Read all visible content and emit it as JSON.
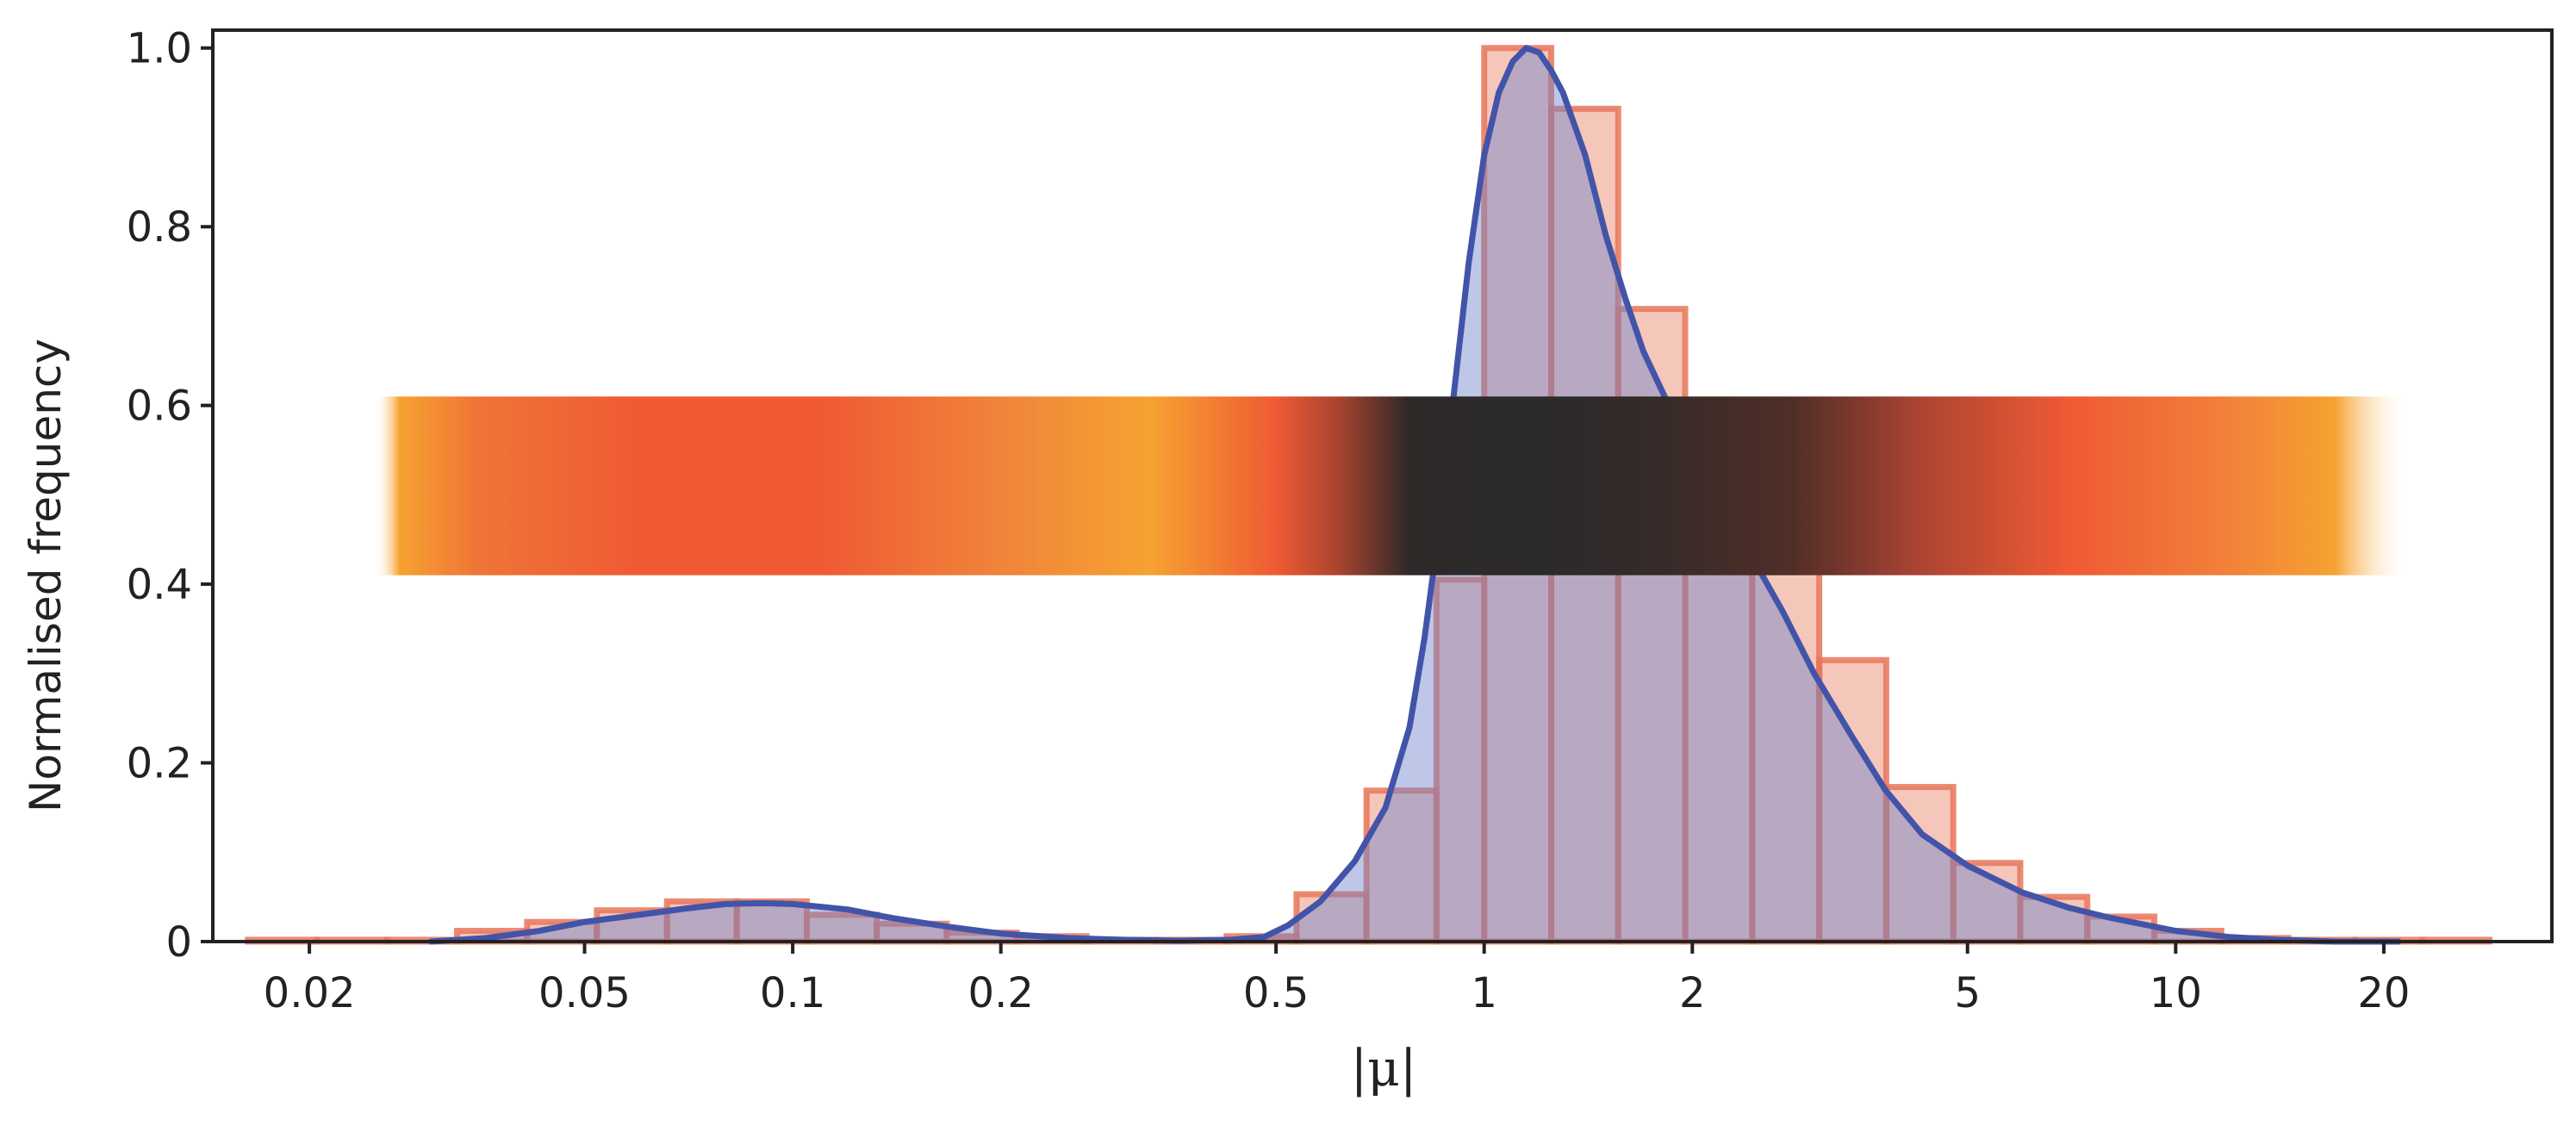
{
  "chart_data": {
    "type": "bar",
    "title": "",
    "xlabel": "|μ|",
    "ylabel": "Normalised frequency",
    "x_scale": "log",
    "xlim": [
      0.0145,
      35.0
    ],
    "ylim": [
      0,
      1.02
    ],
    "grid": false,
    "x_ticks": [
      {
        "value": 0.02,
        "label": "0.02"
      },
      {
        "value": 0.05,
        "label": "0.05"
      },
      {
        "value": 0.1,
        "label": "0.1"
      },
      {
        "value": 0.2,
        "label": "0.2"
      },
      {
        "value": 0.5,
        "label": "0.5"
      },
      {
        "value": 1,
        "label": "1"
      },
      {
        "value": 2,
        "label": "2"
      },
      {
        "value": 5,
        "label": "5"
      },
      {
        "value": 10,
        "label": "10"
      },
      {
        "value": 20,
        "label": "20"
      }
    ],
    "y_ticks": [
      {
        "value": 0,
        "label": "0"
      },
      {
        "value": 0.2,
        "label": "0.2"
      },
      {
        "value": 0.4,
        "label": "0.4"
      },
      {
        "value": 0.6,
        "label": "0.6"
      },
      {
        "value": 0.8,
        "label": "0.8"
      },
      {
        "value": 1.0,
        "label": "1.0"
      }
    ],
    "histogram": {
      "color": "#e8765a",
      "bin_edges": [
        0.0163,
        0.0205,
        0.0259,
        0.0327,
        0.0413,
        0.0521,
        0.0658,
        0.083,
        0.1048,
        0.1323,
        0.167,
        0.2108,
        0.2661,
        0.3359,
        0.4241,
        0.5353,
        0.6758,
        0.8531,
        1.0,
        1.25,
        1.5625,
        1.9531,
        2.4414,
        3.0518,
        3.8147,
        4.7684,
        5.9605,
        7.4506,
        9.3132,
        11.6415,
        14.5519,
        18.1899,
        22.7374,
        28.4217
      ],
      "values": [
        0.002,
        0.002,
        0.002,
        0.012,
        0.022,
        0.035,
        0.045,
        0.045,
        0.03,
        0.02,
        0.01,
        0.006,
        0.002,
        0.002,
        0.006,
        0.053,
        0.169,
        0.405,
        1.0,
        0.932,
        0.708,
        0.532,
        0.456,
        0.315,
        0.173,
        0.088,
        0.05,
        0.028,
        0.012,
        0.004,
        0.002,
        0.002,
        0.002
      ]
    },
    "density_curve": {
      "color": "#4254a8",
      "x": [
        0.03,
        0.036,
        0.043,
        0.05,
        0.06,
        0.07,
        0.08,
        0.09,
        0.1,
        0.12,
        0.14,
        0.17,
        0.2,
        0.25,
        0.3,
        0.36,
        0.43,
        0.48,
        0.52,
        0.58,
        0.65,
        0.72,
        0.78,
        0.82,
        0.86,
        0.9,
        0.95,
        1.0,
        1.05,
        1.1,
        1.15,
        1.2,
        1.25,
        1.3,
        1.4,
        1.5,
        1.6,
        1.7,
        1.85,
        2.0,
        2.2,
        2.4,
        2.7,
        3.0,
        3.4,
        3.8,
        4.3,
        5.0,
        6.0,
        7.0,
        8.0,
        10.0,
        12.0,
        14.0,
        17.0,
        21.0
      ],
      "y": [
        0.0,
        0.004,
        0.012,
        0.022,
        0.03,
        0.037,
        0.042,
        0.043,
        0.042,
        0.036,
        0.026,
        0.016,
        0.009,
        0.004,
        0.002,
        0.001,
        0.002,
        0.005,
        0.018,
        0.045,
        0.09,
        0.15,
        0.24,
        0.34,
        0.46,
        0.6,
        0.76,
        0.88,
        0.95,
        0.985,
        1.0,
        0.995,
        0.975,
        0.95,
        0.88,
        0.79,
        0.72,
        0.66,
        0.6,
        0.55,
        0.49,
        0.44,
        0.37,
        0.3,
        0.23,
        0.17,
        0.12,
        0.085,
        0.055,
        0.038,
        0.027,
        0.012,
        0.005,
        0.002,
        0.0,
        0.0
      ]
    },
    "color_band": {
      "ylim": [
        0.41,
        0.61
      ],
      "xlim": [
        0.025,
        21.5
      ],
      "stops": [
        {
          "x": 0.025,
          "color": "#fff2dc",
          "opacity": 0.0
        },
        {
          "x": 0.027,
          "color": "#f6a231",
          "opacity": 1.0
        },
        {
          "x": 0.035,
          "color": "#f07437",
          "opacity": 1.0
        },
        {
          "x": 0.06,
          "color": "#ef5a33",
          "opacity": 1.0
        },
        {
          "x": 0.11,
          "color": "#ef5a33",
          "opacity": 1.0
        },
        {
          "x": 0.2,
          "color": "#f0843a",
          "opacity": 1.0
        },
        {
          "x": 0.33,
          "color": "#f6a231",
          "opacity": 1.0
        },
        {
          "x": 0.5,
          "color": "#ef5a33",
          "opacity": 1.0
        },
        {
          "x": 0.62,
          "color": "#a6432f",
          "opacity": 1.0
        },
        {
          "x": 0.78,
          "color": "#2e2929",
          "opacity": 1.0
        },
        {
          "x": 1.2,
          "color": "#2b2a2a",
          "opacity": 1.0
        },
        {
          "x": 1.8,
          "color": "#362b29",
          "opacity": 1.0
        },
        {
          "x": 2.8,
          "color": "#512e28",
          "opacity": 1.0
        },
        {
          "x": 4.3,
          "color": "#ad4533",
          "opacity": 1.0
        },
        {
          "x": 7.0,
          "color": "#ef5a33",
          "opacity": 1.0
        },
        {
          "x": 12.0,
          "color": "#f2813a",
          "opacity": 1.0
        },
        {
          "x": 17.0,
          "color": "#f6a231",
          "opacity": 1.0
        },
        {
          "x": 21.5,
          "color": "#fff2dc",
          "opacity": 0.0
        }
      ]
    }
  }
}
